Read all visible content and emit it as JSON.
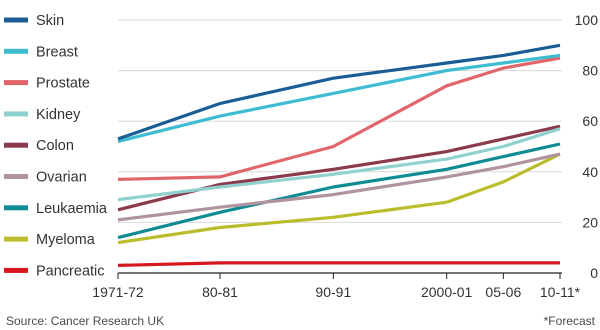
{
  "chart_data": {
    "type": "line",
    "categories": [
      "1971-72",
      "80-81",
      "90-91",
      "2000-01",
      "05-06",
      "10-11*"
    ],
    "x": [
      1971,
      1980,
      1990,
      2000,
      2005,
      2010
    ],
    "ylim": [
      0,
      100
    ],
    "yticks": [
      0,
      20,
      40,
      60,
      80,
      100
    ],
    "y_axis_position": "right",
    "grid": true,
    "legend_position": "left",
    "series": [
      {
        "name": "Skin",
        "color": "#1a5d94",
        "values": [
          53,
          67,
          77,
          83,
          86,
          90
        ]
      },
      {
        "name": "Breast",
        "color": "#3ebcd2",
        "values": [
          52,
          62,
          71,
          80,
          83,
          86
        ]
      },
      {
        "name": "Prostate",
        "color": "#e0666b",
        "values": [
          37,
          38,
          50,
          74,
          81,
          85
        ]
      },
      {
        "name": "Kidney",
        "color": "#8fd1cf",
        "values": [
          29,
          34,
          39,
          45,
          50,
          57
        ]
      },
      {
        "name": "Colon",
        "color": "#8b3a4c",
        "values": [
          25,
          35,
          41,
          48,
          53,
          58
        ]
      },
      {
        "name": "Ovarian",
        "color": "#b0939f",
        "values": [
          21,
          26,
          31,
          38,
          42,
          47
        ]
      },
      {
        "name": "Leukaemia",
        "color": "#0f8b94",
        "values": [
          14,
          24,
          34,
          41,
          46,
          51
        ]
      },
      {
        "name": "Myeloma",
        "color": "#b9bd2b",
        "values": [
          12,
          18,
          22,
          28,
          36,
          47
        ]
      },
      {
        "name": "Pancreatic",
        "color": "#d7171f",
        "values": [
          3,
          4,
          4,
          4,
          4,
          4
        ]
      }
    ],
    "source": "Source: Cancer Research UK",
    "note": "*Forecast"
  }
}
